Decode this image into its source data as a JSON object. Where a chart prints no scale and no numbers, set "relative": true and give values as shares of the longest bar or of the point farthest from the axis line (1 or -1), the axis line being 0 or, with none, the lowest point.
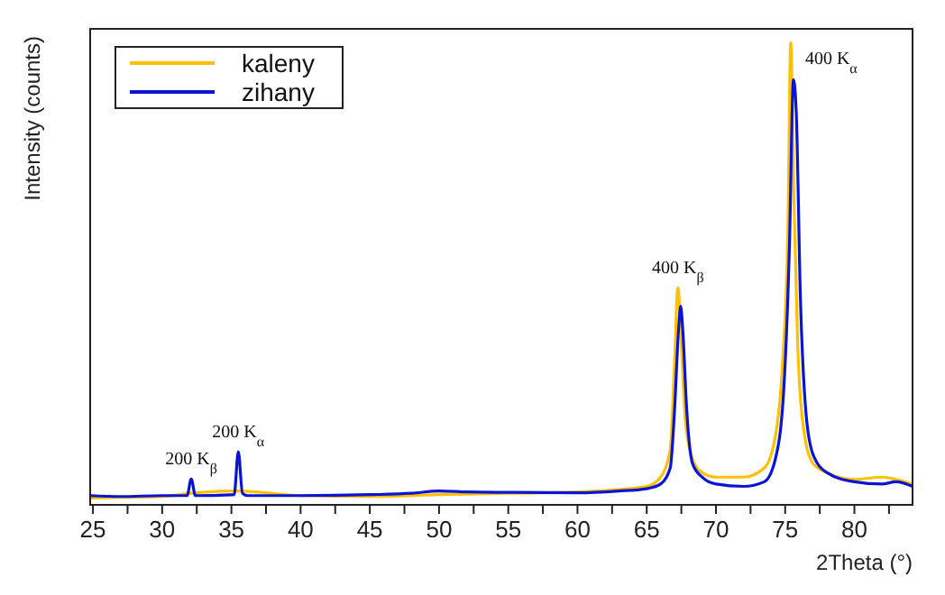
{
  "chart_data": {
    "type": "line",
    "relative": true,
    "xlabel": "2Theta (°)",
    "ylabel": "Intensity (counts)",
    "xlim": [
      24.8,
      84.2
    ],
    "xticks": [
      25,
      {
        "value": 27.5,
        "label": null
      },
      30,
      {
        "value": 32.5,
        "label": null
      },
      35,
      {
        "value": 37.5,
        "label": null
      },
      40,
      {
        "value": 42.5,
        "label": null
      },
      45,
      {
        "value": 47.5,
        "label": null
      },
      50,
      {
        "value": 52.5,
        "label": null
      },
      55,
      {
        "value": 57.5,
        "label": null
      },
      60,
      {
        "value": 62.5,
        "label": null
      },
      65,
      {
        "value": 67.5,
        "label": null
      },
      70,
      {
        "value": 72.5,
        "label": null
      },
      75,
      {
        "value": 77.5,
        "label": null
      },
      80,
      {
        "value": 82.5,
        "label": null
      }
    ],
    "legend": "top left",
    "grid": false,
    "series": [
      {
        "name": "kaleny",
        "color": "#ffc000",
        "x": [
          24.8,
          30,
          32.1,
          35.5,
          40,
          45,
          50,
          55,
          60,
          65,
          66,
          66.7,
          67,
          67.25,
          67.5,
          67.8,
          68.3,
          69,
          70,
          72,
          73.5,
          74.3,
          74.8,
          75.2,
          75.4,
          75.6,
          75.9,
          76.4,
          77,
          78,
          80,
          82,
          83,
          84.2
        ],
        "values": [
          0.015,
          0.018,
          0.025,
          0.03,
          0.02,
          0.018,
          0.022,
          0.025,
          0.028,
          0.04,
          0.06,
          0.12,
          0.3,
          0.47,
          0.35,
          0.18,
          0.1,
          0.07,
          0.06,
          0.06,
          0.08,
          0.15,
          0.3,
          0.6,
          1,
          0.7,
          0.35,
          0.15,
          0.09,
          0.07,
          0.055,
          0.06,
          0.055,
          0.045
        ]
      },
      {
        "name": "zihany",
        "color": "#0a14d2",
        "x": [
          24.8,
          27,
          30,
          31.8,
          32.1,
          32.4,
          35.2,
          35.5,
          35.8,
          36.2,
          40,
          45,
          48,
          50,
          52,
          55,
          60,
          63,
          65,
          66,
          66.7,
          67,
          67.3,
          67.45,
          67.6,
          67.9,
          68.3,
          69,
          70,
          72,
          73.5,
          74.3,
          74.9,
          75.3,
          75.6,
          75.8,
          76.1,
          76.5,
          77,
          78,
          80,
          82,
          83,
          84.2
        ],
        "values": [
          0.02,
          0.018,
          0.02,
          0.02,
          0.056,
          0.02,
          0.022,
          0.115,
          0.025,
          0.02,
          0.02,
          0.022,
          0.025,
          0.03,
          0.028,
          0.027,
          0.026,
          0.03,
          0.035,
          0.045,
          0.08,
          0.2,
          0.38,
          0.43,
          0.38,
          0.2,
          0.09,
          0.06,
          0.045,
          0.04,
          0.05,
          0.1,
          0.25,
          0.55,
          0.92,
          0.85,
          0.45,
          0.2,
          0.11,
          0.07,
          0.05,
          0.045,
          0.05,
          0.04
        ]
      }
    ],
    "annotations": [
      {
        "text": "200 K$_{β}$",
        "x": 32.1,
        "y": 0.056
      },
      {
        "text": "200 K$_{α}$",
        "x": 35.5,
        "y": 0.115
      },
      {
        "text": "400 K$_{β}$",
        "x": 67.25,
        "y": 0.47
      },
      {
        "text": "400 K$_{α}$",
        "x": 75.4,
        "y": 1
      }
    ]
  }
}
